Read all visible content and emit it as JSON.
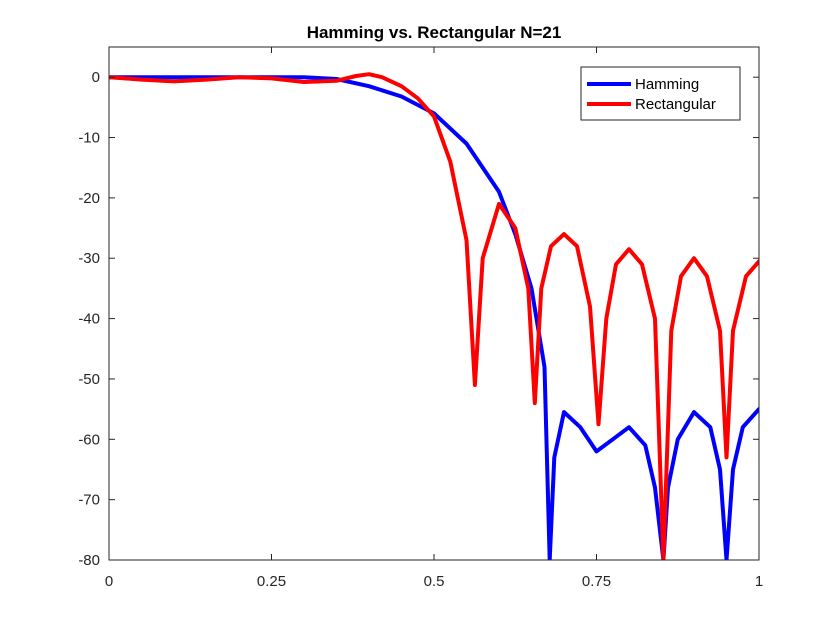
{
  "chart_data": {
    "type": "line",
    "title": "Hamming vs. Rectangular N=21",
    "xlabel": "",
    "ylabel": "",
    "xlim": [
      0,
      1
    ],
    "ylim": [
      -80,
      5
    ],
    "x_ticks": [
      0,
      0.25,
      0.5,
      0.75,
      1
    ],
    "x_tick_labels": [
      "0",
      "0.25",
      "0.5",
      "0.75",
      "1"
    ],
    "y_ticks": [
      0,
      -10,
      -20,
      -30,
      -40,
      -50,
      -60,
      -70,
      -80
    ],
    "y_tick_labels": [
      "0",
      "-10",
      "-20",
      "-30",
      "-40",
      "-50",
      "-60",
      "-70",
      "-80"
    ],
    "grid": false,
    "legend_location": "top-right",
    "series": [
      {
        "name": "Hamming",
        "color": "#0000ff",
        "x": [
          0,
          0.05,
          0.1,
          0.15,
          0.2,
          0.25,
          0.3,
          0.35,
          0.4,
          0.45,
          0.5,
          0.55,
          0.6,
          0.625,
          0.65,
          0.67,
          0.678,
          0.685,
          0.7,
          0.725,
          0.75,
          0.775,
          0.8,
          0.825,
          0.84,
          0.853,
          0.86,
          0.875,
          0.9,
          0.925,
          0.94,
          0.95,
          0.96,
          0.975,
          1.0
        ],
        "y": [
          0,
          0,
          0,
          0,
          0,
          0,
          0,
          -0.3,
          -1.5,
          -3.2,
          -6,
          -11,
          -19,
          -26,
          -35,
          -48,
          -80,
          -63,
          -55.5,
          -58,
          -62,
          -60,
          -58,
          -61,
          -68,
          -80,
          -68,
          -60,
          -55.5,
          -58,
          -65,
          -80,
          -65,
          -58,
          -55
        ]
      },
      {
        "name": "Rectangular",
        "color": "#ff0000",
        "x": [
          0,
          0.05,
          0.1,
          0.15,
          0.2,
          0.25,
          0.3,
          0.35,
          0.38,
          0.4,
          0.42,
          0.45,
          0.475,
          0.5,
          0.525,
          0.55,
          0.563,
          0.575,
          0.6,
          0.625,
          0.645,
          0.655,
          0.665,
          0.68,
          0.7,
          0.72,
          0.74,
          0.753,
          0.765,
          0.78,
          0.8,
          0.82,
          0.84,
          0.853,
          0.865,
          0.88,
          0.9,
          0.92,
          0.94,
          0.95,
          0.96,
          0.98,
          1.0
        ],
        "y": [
          0,
          -0.4,
          -0.7,
          -0.4,
          0,
          -0.2,
          -0.8,
          -0.6,
          0.2,
          0.5,
          0,
          -1.5,
          -3.5,
          -6.5,
          -14,
          -27,
          -51,
          -30,
          -21,
          -25,
          -35,
          -54,
          -35,
          -28,
          -26,
          -28,
          -38,
          -57.5,
          -40,
          -31,
          -28.5,
          -31,
          -40,
          -80,
          -42,
          -33,
          -30,
          -33,
          -42,
          -63,
          -42,
          -33,
          -30.5
        ]
      }
    ]
  }
}
